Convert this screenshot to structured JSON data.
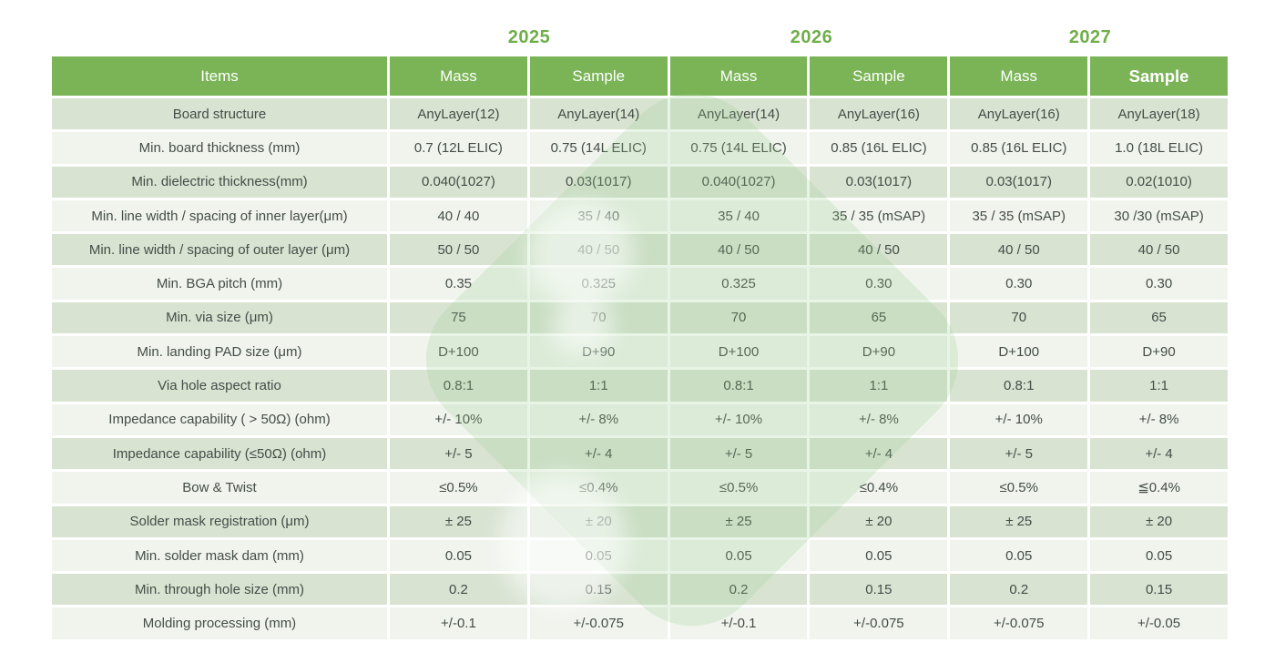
{
  "colors": {
    "page_bg": "#ffffff",
    "header_green": "#7ab456",
    "year_green": "#6fae49",
    "row_dark": "#d8e3d2",
    "row_light": "#f0f4ed",
    "text": "#454d47",
    "header_text": "#ffffff",
    "watermark_green": "#97cd8f"
  },
  "years": [
    {
      "label": "2025"
    },
    {
      "label": "2026"
    },
    {
      "label": "2027"
    }
  ],
  "table": {
    "items_header": "Items",
    "column_headers": [
      {
        "label": "Mass",
        "year": "2025",
        "bold": false
      },
      {
        "label": "Sample",
        "year": "2025",
        "bold": false
      },
      {
        "label": "Mass",
        "year": "2026",
        "bold": false
      },
      {
        "label": "Sample",
        "year": "2026",
        "bold": false
      },
      {
        "label": "Mass",
        "year": "2027",
        "bold": false
      },
      {
        "label": "Sample",
        "year": "2027",
        "bold": true
      }
    ],
    "rows": [
      {
        "label": "Board structure",
        "values": [
          "AnyLayer(12)",
          "AnyLayer(14)",
          "AnyLayer(14)",
          "AnyLayer(16)",
          "AnyLayer(16)",
          "AnyLayer(18)"
        ]
      },
      {
        "label": "Min. board thickness  (mm)",
        "values": [
          "0.7  (12L ELIC)",
          "0.75  (14L ELIC)",
          "0.75  (14L ELIC)",
          "0.85  (16L ELIC)",
          "0.85  (16L ELIC)",
          "1.0  (18L ELIC)"
        ]
      },
      {
        "label": "Min. dielectric thickness(mm)",
        "values": [
          "0.040(1027)",
          "0.03(1017)",
          "0.040(1027)",
          "0.03(1017)",
          "0.03(1017)",
          "0.02(1010)"
        ]
      },
      {
        "label": "Min. line width / spacing of inner layer(μm)",
        "values": [
          "40 / 40",
          "35 / 40",
          "35 / 40",
          "35 / 35  (mSAP)",
          "35 / 35  (mSAP)",
          "30 /30  (mSAP)"
        ]
      },
      {
        "label": "Min. line width / spacing of outer layer  (μm)",
        "values": [
          "50 / 50",
          "40 / 50",
          "40 / 50",
          "40 / 50",
          "40 / 50",
          "40 / 50"
        ]
      },
      {
        "label": "Min. BGA pitch  (mm)",
        "values": [
          "0.35",
          "0.325",
          "0.325",
          "0.30",
          "0.30",
          "0.30"
        ]
      },
      {
        "label": "Min. via size  (μm)",
        "values": [
          "75",
          "70",
          "70",
          "65",
          "70",
          "65"
        ]
      },
      {
        "label": "Min. landing PAD size  (μm)",
        "values": [
          "D+100",
          "D+90",
          "D+100",
          "D+90",
          "D+100",
          "D+90"
        ]
      },
      {
        "label": "Via hole aspect ratio",
        "values": [
          "0.8:1",
          "1:1",
          "0.8:1",
          "1:1",
          "0.8:1",
          "1:1"
        ]
      },
      {
        "label": "Impedance capability  ( > 50Ω)    (ohm)",
        "values": [
          "+/- 10%",
          "+/- 8%",
          "+/- 10%",
          "+/- 8%",
          "+/- 10%",
          "+/- 8%"
        ]
      },
      {
        "label": "Impedance capability  (≤50Ω)    (ohm)",
        "values": [
          "+/- 5",
          "+/- 4",
          "+/- 5",
          "+/- 4",
          "+/- 5",
          "+/- 4"
        ]
      },
      {
        "label": "Bow & Twist",
        "values": [
          "≤0.5%",
          "≤0.4%",
          "≤0.5%",
          "≤0.4%",
          "≤0.5%",
          "≦0.4%"
        ]
      },
      {
        "label": "Solder mask registration  (μm)",
        "values": [
          "± 25",
          "± 20",
          "± 25",
          "± 20",
          "± 25",
          "± 20"
        ]
      },
      {
        "label": "Min. solder mask dam  (mm)",
        "values": [
          "0.05",
          "0.05",
          "0.05",
          "0.05",
          "0.05",
          "0.05"
        ]
      },
      {
        "label": "Min. through hole size  (mm)",
        "values": [
          "0.2",
          "0.15",
          "0.2",
          "0.15",
          "0.2",
          "0.15"
        ]
      },
      {
        "label": "Molding processing  (mm)",
        "values": [
          "+/-0.1",
          "+/-0.075",
          "+/-0.1",
          "+/-0.075",
          "+/-0.075",
          "+/-0.05"
        ]
      }
    ]
  }
}
